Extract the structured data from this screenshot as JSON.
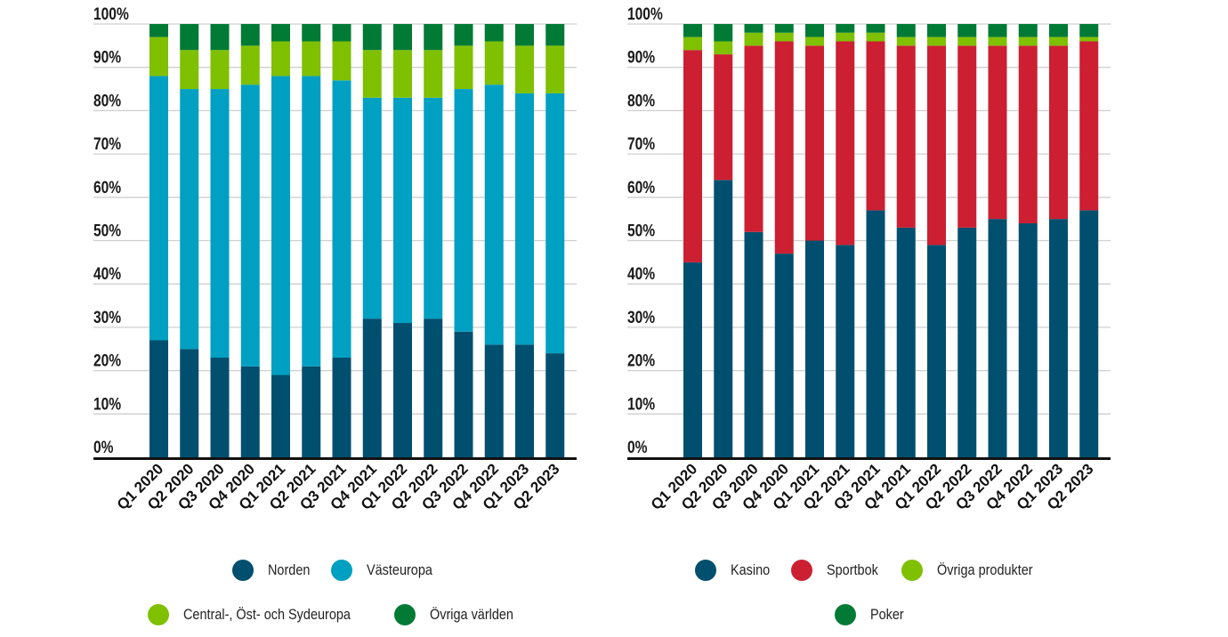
{
  "chart_data": [
    {
      "type": "bar",
      "stacked": true,
      "title": "",
      "xlabel": "",
      "ylabel": "",
      "ylim": [
        0,
        100
      ],
      "yticks": [
        "0%",
        "10%",
        "20%",
        "30%",
        "40%",
        "50%",
        "60%",
        "70%",
        "80%",
        "90%",
        "100%"
      ],
      "grid": true,
      "legend_position": "bottom",
      "categories": [
        "Q1 2020",
        "Q2 2020",
        "Q3 2020",
        "Q4 2020",
        "Q1 2021",
        "Q2 2021",
        "Q3 2021",
        "Q4 2021",
        "Q1 2022",
        "Q2 2022",
        "Q3 2022",
        "Q4 2022",
        "Q1 2023",
        "Q2 2023"
      ],
      "series": [
        {
          "name": "Norden",
          "color": "#004f6e",
          "values": [
            27,
            25,
            23,
            21,
            19,
            21,
            23,
            32,
            31,
            32,
            29,
            26,
            26,
            24
          ]
        },
        {
          "name": "Västeuropa",
          "color": "#00a0c2",
          "values": [
            61,
            60,
            62,
            65,
            69,
            67,
            64,
            51,
            52,
            51,
            56,
            60,
            58,
            60
          ]
        },
        {
          "name": "Central-, Öst- och Sydeuropa",
          "color": "#7fc000",
          "values": [
            9,
            9,
            9,
            9,
            8,
            8,
            9,
            11,
            11,
            11,
            10,
            10,
            11,
            11
          ]
        },
        {
          "name": "Övriga världen",
          "color": "#007a35",
          "values": [
            3,
            6,
            6,
            5,
            4,
            4,
            4,
            6,
            6,
            6,
            5,
            4,
            5,
            5
          ]
        }
      ]
    },
    {
      "type": "bar",
      "stacked": true,
      "title": "",
      "xlabel": "",
      "ylabel": "",
      "ylim": [
        0,
        100
      ],
      "yticks": [
        "0%",
        "10%",
        "20%",
        "30%",
        "40%",
        "50%",
        "60%",
        "70%",
        "80%",
        "90%",
        "100%"
      ],
      "grid": true,
      "legend_position": "bottom",
      "categories": [
        "Q1 2020",
        "Q2 2020",
        "Q3 2020",
        "Q4 2020",
        "Q1 2021",
        "Q2 2021",
        "Q3 2021",
        "Q4 2021",
        "Q1 2022",
        "Q2 2022",
        "Q3 2022",
        "Q4 2022",
        "Q1 2023",
        "Q2 2023"
      ],
      "series": [
        {
          "name": "Kasino",
          "color": "#004f6e",
          "values": [
            45,
            64,
            52,
            47,
            50,
            49,
            57,
            53,
            49,
            53,
            55,
            54,
            55,
            57
          ]
        },
        {
          "name": "Sportbok",
          "color": "#cc1f32",
          "values": [
            49,
            29,
            43,
            49,
            45,
            47,
            39,
            42,
            46,
            42,
            40,
            41,
            40,
            39
          ]
        },
        {
          "name": "Övriga produkter",
          "color": "#7fc000",
          "values": [
            3,
            3,
            3,
            2,
            2,
            2,
            2,
            2,
            2,
            2,
            2,
            2,
            2,
            1
          ]
        },
        {
          "name": "Poker",
          "color": "#007a35",
          "values": [
            3,
            4,
            2,
            2,
            3,
            2,
            2,
            3,
            3,
            3,
            3,
            3,
            3,
            3
          ]
        }
      ]
    }
  ]
}
